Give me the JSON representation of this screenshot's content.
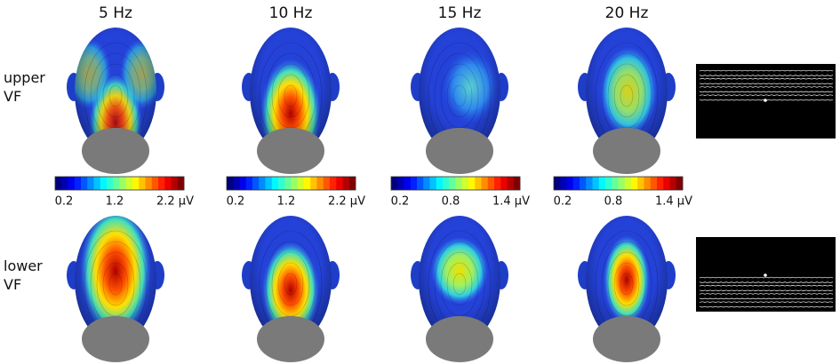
{
  "columns": [
    "5 Hz",
    "10 Hz",
    "15 Hz",
    "20 Hz"
  ],
  "rows": [
    {
      "label": [
        "upper",
        "VF"
      ]
    },
    {
      "label": [
        "lower",
        "VF"
      ]
    }
  ],
  "colorbars": [
    {
      "ticks": [
        "0.2",
        "1.2",
        "2.2 µV"
      ]
    },
    {
      "ticks": [
        "0.2",
        "1.2",
        "2.2 µV"
      ]
    },
    {
      "ticks": [
        "0.2",
        "0.8",
        "1.4 µV"
      ]
    },
    {
      "ticks": [
        "0.2",
        "0.8",
        "1.4 µV"
      ]
    }
  ]
}
